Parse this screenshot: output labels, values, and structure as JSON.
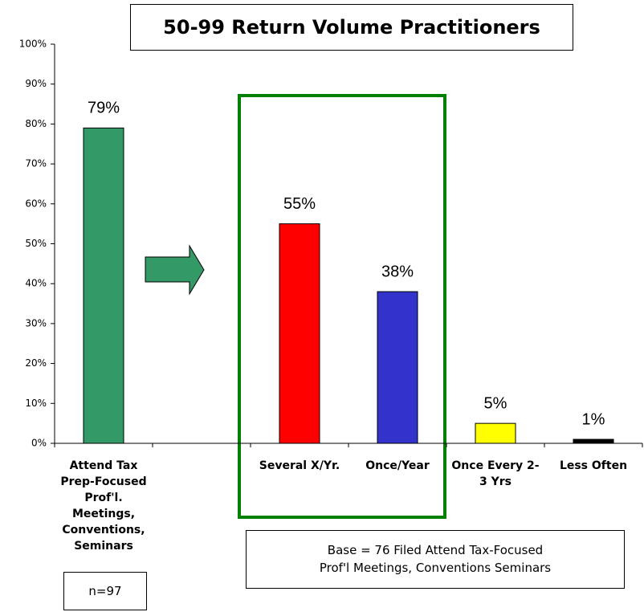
{
  "chart_data": {
    "type": "bar",
    "title": "50-99 Return Volume Practitioners",
    "categories": [
      "Attend Tax Prep-Focused Prof'l. Meetings, Conventions, Seminars",
      null,
      "Several X/Yr.",
      "Once/Year",
      "Once Every 2-3 Yrs",
      "Less Often"
    ],
    "values": [
      79,
      null,
      55,
      38,
      5,
      1
    ],
    "value_labels": [
      "79%",
      null,
      "55%",
      "38%",
      "5%",
      "1%"
    ],
    "colors": [
      "#339966",
      null,
      "#ff0000",
      "#3333cc",
      "#ffff00",
      "#000000"
    ],
    "ylim": [
      0,
      100
    ],
    "yticks": [
      {
        "value": 0,
        "label": "0%"
      },
      {
        "value": 10,
        "label": "10%"
      },
      {
        "value": 20,
        "label": "20%"
      },
      {
        "value": 30,
        "label": "30%"
      },
      {
        "value": 40,
        "label": "40%"
      },
      {
        "value": 50,
        "label": "50%"
      },
      {
        "value": 60,
        "label": "60%"
      },
      {
        "value": 70,
        "label": "70%"
      },
      {
        "value": 80,
        "label": "80%"
      },
      {
        "value": 90,
        "label": "90%"
      },
      {
        "value": 100,
        "label": "100%"
      }
    ],
    "grid": false,
    "annotations": [
      "Base = 76 Filed Attend Tax-Focused\nProf'l Meetings, Conventions Seminars",
      "n=97"
    ]
  }
}
